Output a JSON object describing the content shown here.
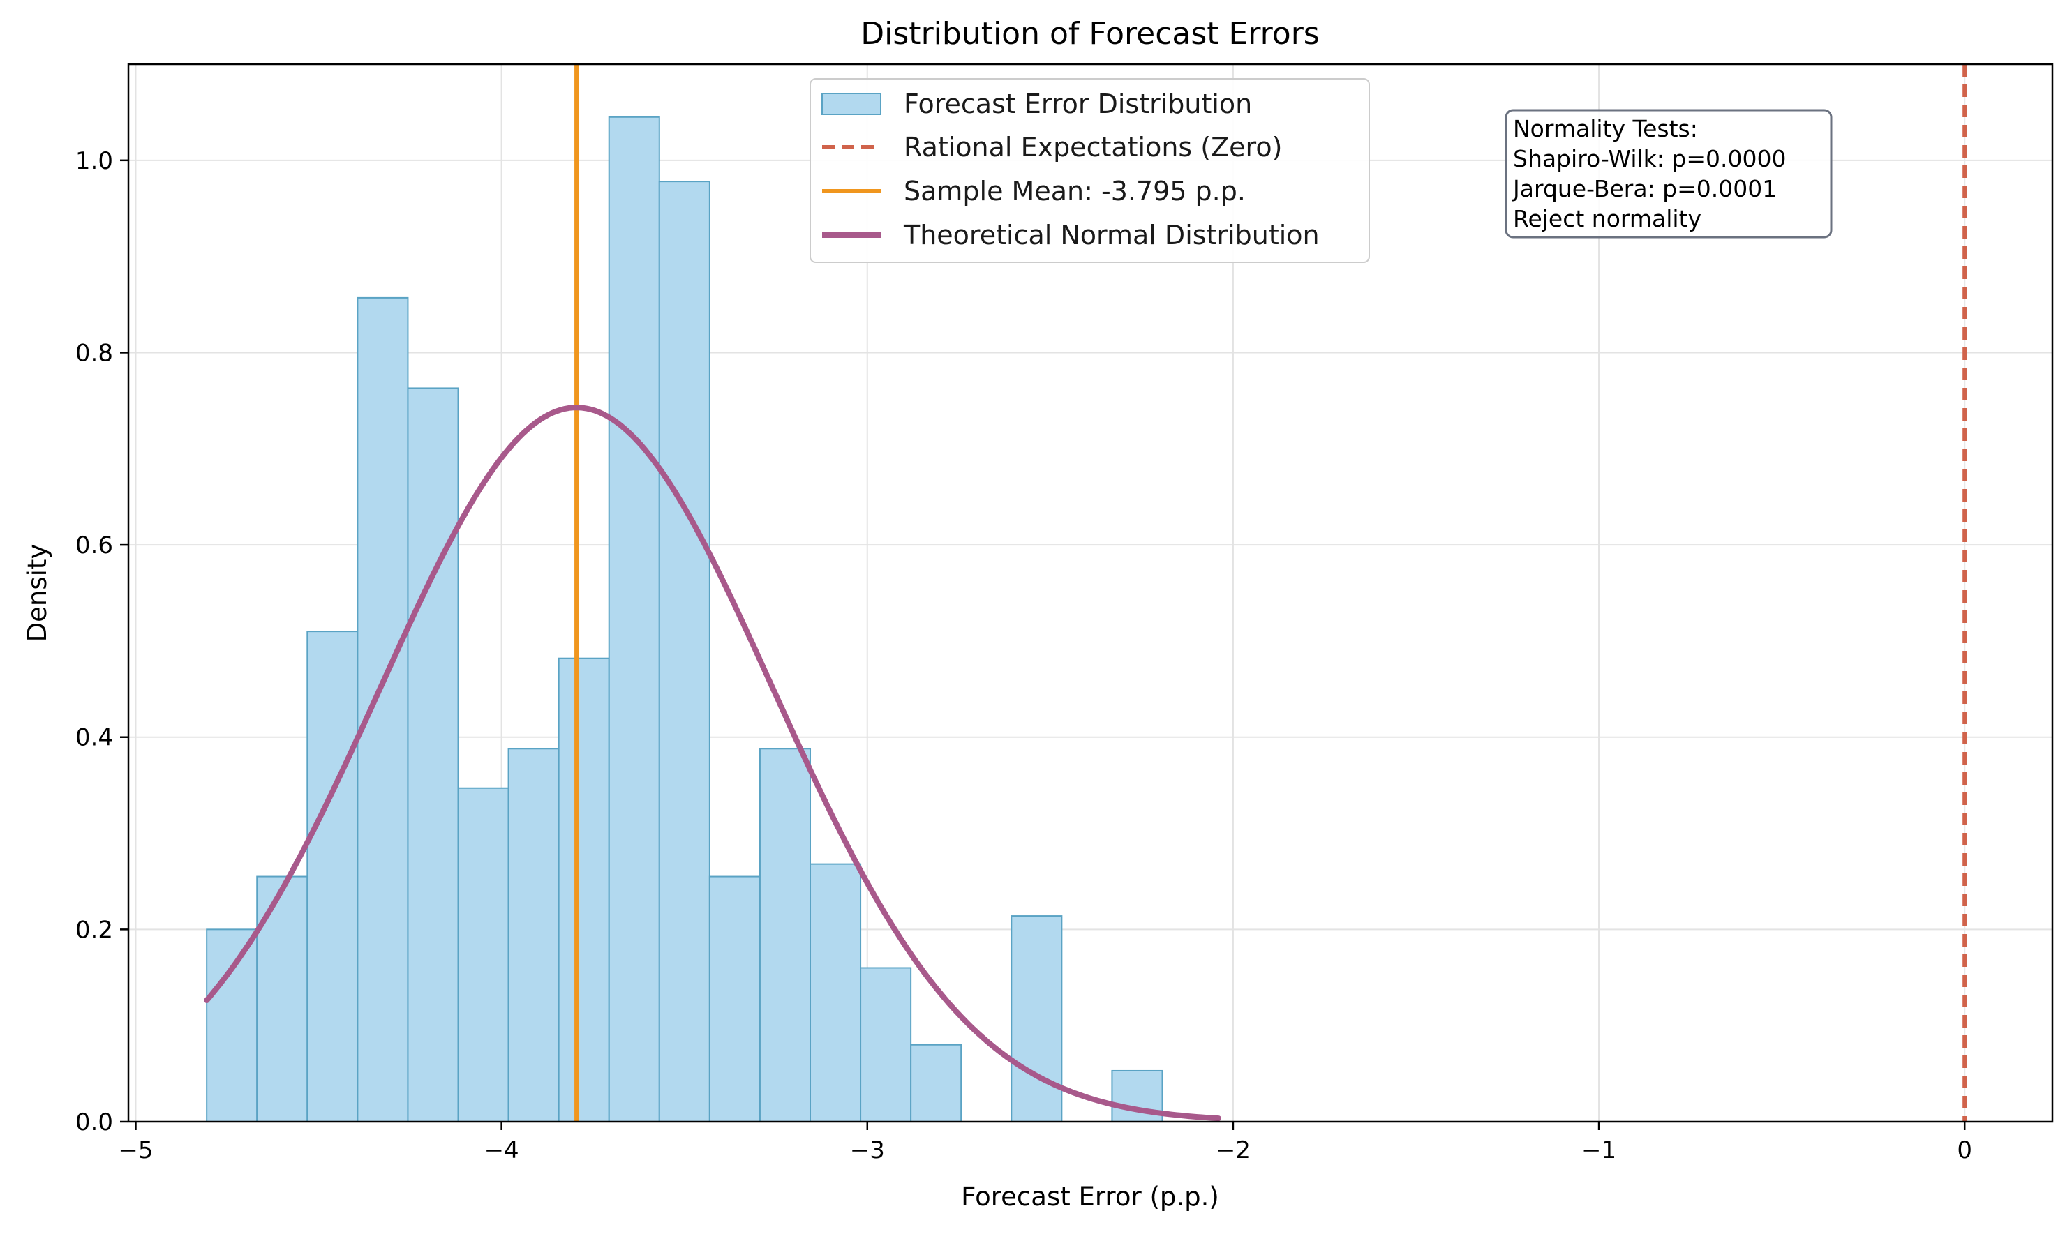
{
  "chart_data": {
    "type": "histogram",
    "title": "Distribution of Forecast Errors",
    "xlabel": "Forecast Error (p.p.)",
    "ylabel": "Density",
    "xlim": [
      -5.02,
      0.24
    ],
    "ylim": [
      0,
      1.1
    ],
    "xticks": [
      -5,
      -4,
      -3,
      -2,
      -1,
      0
    ],
    "xtick_labels": [
      "−5",
      "−4",
      "−3",
      "−2",
      "−1",
      "0"
    ],
    "yticks": [
      0.0,
      0.2,
      0.4,
      0.6,
      0.8,
      1.0
    ],
    "ytick_labels": [
      "0.0",
      "0.2",
      "0.4",
      "0.6",
      "0.8",
      "1.0"
    ],
    "grid": true,
    "bins": {
      "start": -4.806,
      "width": 0.1375,
      "values": [
        0.2,
        0.255,
        0.51,
        0.857,
        0.763,
        0.347,
        0.388,
        0.482,
        1.045,
        0.978,
        0.255,
        0.388,
        0.268,
        0.16,
        0.08,
        0,
        0.214,
        0,
        0.053
      ],
      "fill": "#b2d9ef",
      "edge": "#5aa3c4"
    },
    "mean_line": {
      "x": -3.795,
      "color": "#f0961e"
    },
    "zero_line": {
      "x": 0,
      "color": "#d0634b"
    },
    "normal_curve": {
      "mean": -3.795,
      "sd": 0.537,
      "x_range": [
        -4.806,
        -2.04
      ],
      "color": "#a8598b"
    },
    "legend_position": "upper center",
    "legend": [
      {
        "label": "Forecast Error Distribution",
        "kind": "patch"
      },
      {
        "label": "Rational Expectations (Zero)",
        "kind": "dashed"
      },
      {
        "label": "Sample Mean: -3.795 p.p.",
        "kind": "line-orange"
      },
      {
        "label": "Theoretical Normal Distribution",
        "kind": "line-purple"
      }
    ],
    "annotation": {
      "lines": [
        "Normality Tests:",
        "Shapiro-Wilk: p=0.0000",
        "Jarque-Bera: p=0.0001",
        "Reject normality"
      ]
    }
  }
}
